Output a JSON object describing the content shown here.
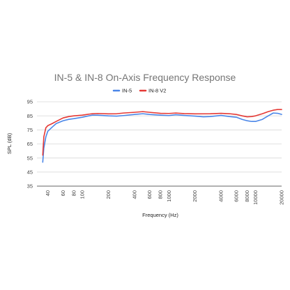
{
  "chart_data": {
    "type": "line",
    "title": "IN-5 & IN-8 On-Axis Frequency Response",
    "xlabel": "Frequency (Hz)",
    "ylabel": "SPL (dB)",
    "x_scale": "log",
    "xlim": [
      30,
      20000
    ],
    "ylim": [
      35,
      95
    ],
    "y_ticks": [
      35,
      45,
      55,
      65,
      75,
      85,
      95
    ],
    "x_ticks": [
      {
        "value": 40,
        "label": "40"
      },
      {
        "value": 60,
        "label": "60"
      },
      {
        "value": 80,
        "label": "80"
      },
      {
        "value": 100,
        "label": "100"
      },
      {
        "value": 200,
        "label": "200"
      },
      {
        "value": 400,
        "label": "400"
      },
      {
        "value": 600,
        "label": "600"
      },
      {
        "value": 800,
        "label": "800"
      },
      {
        "value": 1000,
        "label": "1000"
      },
      {
        "value": 2000,
        "label": "2000"
      },
      {
        "value": 4000,
        "label": "4000"
      },
      {
        "value": 6000,
        "label": "6000"
      },
      {
        "value": 8000,
        "label": "8000"
      },
      {
        "value": 10000,
        "label": "10000"
      },
      {
        "value": 20000,
        "label": "20000"
      }
    ],
    "grid": true,
    "legend_position": "top",
    "series": [
      {
        "name": "IN-5",
        "color": "#4a86e8",
        "points": [
          [
            35,
            52
          ],
          [
            36,
            62
          ],
          [
            38,
            70
          ],
          [
            40,
            74
          ],
          [
            45,
            77
          ],
          [
            50,
            79.5
          ],
          [
            60,
            81.5
          ],
          [
            70,
            82.5
          ],
          [
            80,
            83
          ],
          [
            100,
            84
          ],
          [
            130,
            85.5
          ],
          [
            150,
            85.5
          ],
          [
            200,
            85
          ],
          [
            250,
            84.8
          ],
          [
            300,
            85.2
          ],
          [
            400,
            86
          ],
          [
            500,
            86.5
          ],
          [
            600,
            86
          ],
          [
            800,
            85.5
          ],
          [
            1000,
            85.2
          ],
          [
            1200,
            85.8
          ],
          [
            1500,
            85.3
          ],
          [
            2000,
            84.8
          ],
          [
            2500,
            84.3
          ],
          [
            3000,
            84.5
          ],
          [
            4000,
            85.3
          ],
          [
            5000,
            84.5
          ],
          [
            6000,
            84
          ],
          [
            7000,
            82.5
          ],
          [
            8000,
            81.5
          ],
          [
            9000,
            81
          ],
          [
            10000,
            81
          ],
          [
            12000,
            82.5
          ],
          [
            14000,
            85
          ],
          [
            16000,
            87
          ],
          [
            18000,
            86.8
          ],
          [
            20000,
            86
          ]
        ]
      },
      {
        "name": "IN-8 V2",
        "color": "#e53935",
        "points": [
          [
            35,
            57
          ],
          [
            36,
            70
          ],
          [
            38,
            76.5
          ],
          [
            40,
            78
          ],
          [
            45,
            79.5
          ],
          [
            50,
            81
          ],
          [
            60,
            83.5
          ],
          [
            70,
            84.5
          ],
          [
            80,
            85
          ],
          [
            100,
            85.5
          ],
          [
            130,
            86.5
          ],
          [
            150,
            86.7
          ],
          [
            200,
            86.4
          ],
          [
            250,
            86.5
          ],
          [
            300,
            87
          ],
          [
            400,
            87.5
          ],
          [
            500,
            88
          ],
          [
            600,
            87.5
          ],
          [
            800,
            86.8
          ],
          [
            1000,
            86.7
          ],
          [
            1200,
            87
          ],
          [
            1500,
            86.6
          ],
          [
            2000,
            86.4
          ],
          [
            3000,
            86.5
          ],
          [
            4000,
            86.8
          ],
          [
            5000,
            86.5
          ],
          [
            6000,
            86
          ],
          [
            7000,
            85
          ],
          [
            8000,
            84.3
          ],
          [
            9000,
            84.5
          ],
          [
            10000,
            85
          ],
          [
            12000,
            86.5
          ],
          [
            14000,
            88
          ],
          [
            16000,
            89
          ],
          [
            18000,
            89.5
          ],
          [
            20000,
            89.5
          ]
        ]
      }
    ]
  }
}
